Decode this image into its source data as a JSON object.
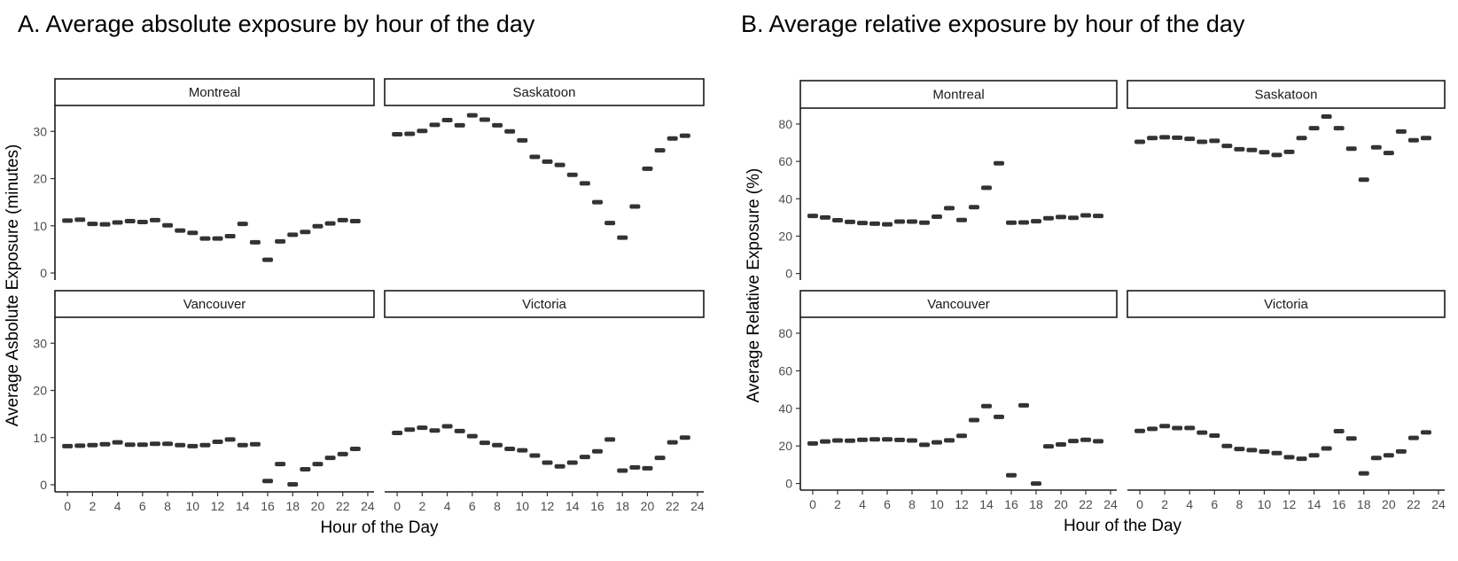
{
  "chart_data": [
    {
      "type": "scatter",
      "panel_title": "A. Average absolute exposure by hour of the day",
      "xlabel": "Hour of the Day",
      "ylabel": "Average Asbolute Exposure (minutes)",
      "xlim": [
        -1,
        24.5
      ],
      "ylim": [
        -1.5,
        35.5
      ],
      "xticks": [
        0,
        2,
        4,
        6,
        8,
        10,
        12,
        14,
        16,
        18,
        20,
        22,
        24
      ],
      "yticks": [
        0,
        10,
        20,
        30
      ],
      "facets": [
        {
          "name": "Montreal",
          "values": [
            11.1,
            11.3,
            10.4,
            10.3,
            10.7,
            11.0,
            10.8,
            11.2,
            10.1,
            9.0,
            8.5,
            7.3,
            7.3,
            7.8,
            10.4,
            6.5,
            2.8,
            6.7,
            8.1,
            8.7,
            9.9,
            10.5,
            11.2,
            11.0
          ]
        },
        {
          "name": "Saskatoon",
          "values": [
            29.4,
            29.5,
            30.1,
            31.4,
            32.4,
            31.3,
            33.4,
            32.5,
            31.3,
            30.0,
            28.1,
            24.6,
            23.6,
            22.9,
            20.8,
            19.0,
            15.0,
            10.6,
            7.5,
            14.1,
            22.1,
            26.0,
            28.5,
            29.1
          ]
        },
        {
          "name": "Vancouver",
          "values": [
            8.2,
            8.3,
            8.4,
            8.6,
            9.0,
            8.5,
            8.5,
            8.7,
            8.7,
            8.4,
            8.2,
            8.4,
            9.1,
            9.6,
            8.4,
            8.6,
            0.8,
            4.4,
            0.1,
            3.3,
            4.4,
            5.7,
            6.5,
            7.6
          ]
        },
        {
          "name": "Victoria",
          "values": [
            11.0,
            11.7,
            12.1,
            11.5,
            12.4,
            11.4,
            10.3,
            8.9,
            8.4,
            7.6,
            7.3,
            6.2,
            4.7,
            3.9,
            4.7,
            5.9,
            7.1,
            9.6,
            3.0,
            3.7,
            3.5,
            5.7,
            9.0,
            10.0
          ]
        }
      ]
    },
    {
      "type": "scatter",
      "panel_title": "B. Average relative exposure by hour of the day",
      "xlabel": "Hour of the Day",
      "ylabel": "Average Relative Exposure (%)",
      "xlim": [
        -1,
        24.5
      ],
      "ylim": [
        -3.5,
        88.5
      ],
      "xticks": [
        0,
        2,
        4,
        6,
        8,
        10,
        12,
        14,
        16,
        18,
        20,
        22,
        24
      ],
      "yticks": [
        0,
        20,
        40,
        60,
        80
      ],
      "facets": [
        {
          "name": "Montreal",
          "values": [
            30.8,
            30.0,
            28.5,
            27.6,
            27.0,
            26.7,
            26.3,
            27.8,
            27.8,
            27.2,
            30.4,
            35.0,
            28.6,
            35.5,
            45.9,
            59.0,
            27.2,
            27.3,
            28.0,
            29.6,
            30.2,
            29.8,
            31.1,
            30.8
          ]
        },
        {
          "name": "Saskatoon",
          "values": [
            70.5,
            72.5,
            72.9,
            72.7,
            72.1,
            70.5,
            71.0,
            68.3,
            66.5,
            66.1,
            64.9,
            63.4,
            65.1,
            72.5,
            77.8,
            84.0,
            77.8,
            66.8,
            50.2,
            67.5,
            64.5,
            76.0,
            71.3,
            72.5
          ]
        },
        {
          "name": "Vancouver",
          "values": [
            21.3,
            22.4,
            22.9,
            22.8,
            23.3,
            23.5,
            23.5,
            23.2,
            22.9,
            20.6,
            21.9,
            23.0,
            25.4,
            33.8,
            41.2,
            35.5,
            4.4,
            41.6,
            0.0,
            19.8,
            20.8,
            22.6,
            23.3,
            22.5
          ]
        },
        {
          "name": "Victoria",
          "values": [
            28.0,
            29.1,
            30.6,
            29.5,
            29.6,
            27.1,
            25.5,
            20.0,
            18.4,
            17.8,
            17.0,
            16.2,
            14.0,
            13.2,
            15.0,
            18.7,
            27.9,
            24.0,
            5.4,
            13.6,
            15.0,
            17.1,
            24.3,
            27.2
          ]
        }
      ]
    }
  ]
}
